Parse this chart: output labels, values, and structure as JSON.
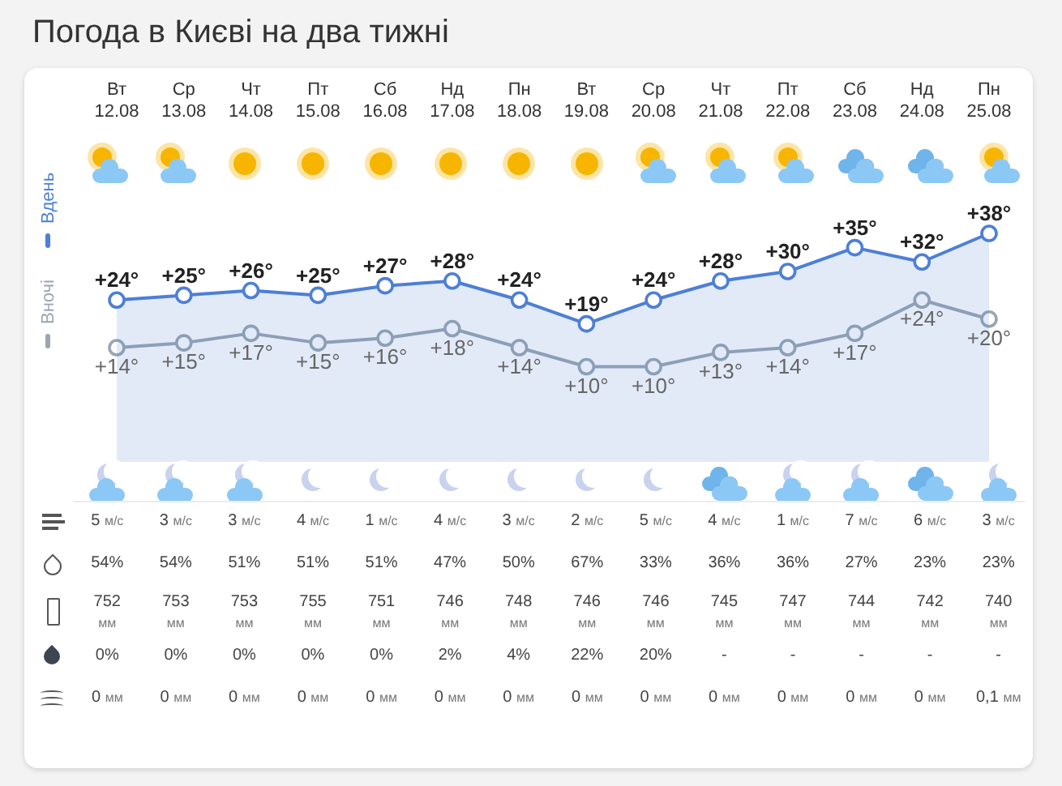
{
  "chart_data": {
    "type": "line",
    "title": "Погода в Києві на два тижні",
    "categories": [
      "Вт 12.08",
      "Ср 13.08",
      "Чт 14.08",
      "Пт 15.08",
      "Сб 16.08",
      "Нд 17.08",
      "Пн 18.08",
      "Вт 19.08",
      "Ср 20.08",
      "Чт 21.08",
      "Пт 22.08",
      "Сб 23.08",
      "Нд 24.08",
      "Пн 25.08"
    ],
    "series": [
      {
        "name": "Вдень",
        "type": "area",
        "color": "#4d7fd6",
        "values": [
          24,
          25,
          26,
          25,
          27,
          28,
          24,
          19,
          24,
          28,
          30,
          35,
          32,
          38
        ],
        "value_labels": [
          "+24°",
          "+25°",
          "+26°",
          "+25°",
          "+27°",
          "+28°",
          "+24°",
          "+19°",
          "+24°",
          "+28°",
          "+30°",
          "+35°",
          "+32°",
          "+38°"
        ]
      },
      {
        "name": "Вночі",
        "color": "#9aa6b2",
        "values": [
          14,
          15,
          17,
          15,
          16,
          18,
          14,
          10,
          10,
          13,
          14,
          17,
          24,
          20
        ],
        "value_labels": [
          "+14°",
          "+15°",
          "+17°",
          "+15°",
          "+16°",
          "+18°",
          "+14°",
          "+10°",
          "+10°",
          "+13°",
          "+14°",
          "+17°",
          "+24°",
          "+20°"
        ]
      }
    ],
    "marker": "circle",
    "legend": "left",
    "tick_labels": "x",
    "grid": false,
    "annotations": [
      "5 м/с",
      "3 м/с",
      "3 м/с",
      "4 м/с",
      "1 м/с",
      "4 м/с",
      "3 м/с",
      "2 м/с",
      "5 м/с",
      "4 м/с",
      "1 м/с",
      "7 м/с",
      "6 м/с",
      "3 м/с",
      "54%",
      "54%",
      "51%",
      "51%",
      "51%",
      "47%",
      "50%",
      "67%",
      "33%",
      "36%",
      "36%",
      "27%",
      "23%",
      "23%",
      "752 мм",
      "753 мм",
      "753 мм",
      "755 мм",
      "751 мм",
      "746 мм",
      "748 мм",
      "746 мм",
      "746 мм",
      "745 мм",
      "747 мм",
      "744 мм",
      "742 мм",
      "740 мм",
      "0%",
      "0%",
      "0%",
      "0%",
      "0%",
      "2%",
      "4%",
      "22%",
      "20%",
      "-",
      "-",
      "-",
      "-",
      "-",
      "0 мм",
      "0 мм",
      "0 мм",
      "0 мм",
      "0 мм",
      "0 мм",
      "0 мм",
      "0 мм",
      "0 мм",
      "0 мм",
      "0 мм",
      "0 мм",
      "0 мм",
      "0,1 мм"
    ]
  }
}
